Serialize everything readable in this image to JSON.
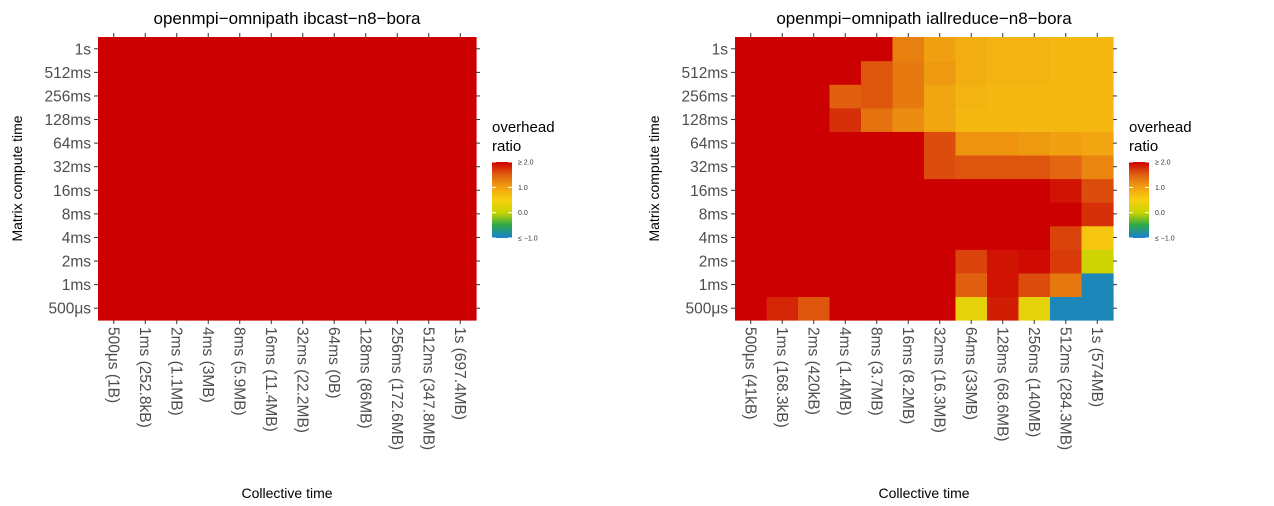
{
  "colors": {
    "scale": [
      "#1b7fd6",
      "#2ba84a",
      "#c8d400",
      "#f8d010",
      "#f0a010",
      "#e06010",
      "#cc0000"
    ],
    "scale_min": -1.0,
    "scale_max": 2.0
  },
  "chart_data": [
    {
      "type": "heatmap",
      "title": "openmpi−omnipath ibcast−n8−bora",
      "xlabel": "Collective time",
      "ylabel": "Matrix compute time",
      "x_categories": [
        "500μs (1B)",
        "1ms (252.8kB)",
        "2ms (1.1MB)",
        "4ms (3MB)",
        "8ms (5.9MB)",
        "16ms (11.4MB)",
        "32ms (22.2MB)",
        "64ms (0B)",
        "128ms (86MB)",
        "256ms (172.6MB)",
        "512ms (347.8MB)",
        "1s (697.4MB)"
      ],
      "y_categories": [
        "500μs",
        "1ms",
        "2ms",
        "4ms",
        "8ms",
        "16ms",
        "32ms",
        "64ms",
        "128ms",
        "256ms",
        "512ms",
        "1s"
      ],
      "legend": {
        "title_line1": "overhead",
        "title_line2": "ratio",
        "ticks": [
          "≥ 2.0",
          "1.0",
          "0.0",
          "≤ −1.0"
        ],
        "placement": "right"
      },
      "values": [
        [
          2.0,
          2.0,
          2.0,
          2.0,
          2.0,
          2.0,
          2.0,
          2.0,
          2.0,
          2.0,
          2.0,
          2.0
        ],
        [
          2.0,
          2.0,
          2.0,
          2.0,
          2.0,
          2.0,
          2.0,
          2.0,
          2.0,
          2.0,
          2.0,
          2.0
        ],
        [
          2.0,
          2.0,
          2.0,
          2.0,
          2.0,
          2.0,
          2.0,
          2.0,
          2.0,
          2.0,
          2.0,
          2.0
        ],
        [
          2.0,
          2.0,
          2.0,
          2.0,
          2.0,
          2.0,
          2.0,
          2.0,
          2.0,
          2.0,
          2.0,
          2.0
        ],
        [
          2.0,
          2.0,
          2.0,
          2.0,
          2.0,
          2.0,
          2.0,
          2.0,
          2.0,
          2.0,
          2.0,
          2.0
        ],
        [
          2.0,
          2.0,
          2.0,
          2.0,
          2.0,
          2.0,
          2.0,
          2.0,
          2.0,
          2.0,
          2.0,
          2.0
        ],
        [
          2.0,
          2.0,
          2.0,
          2.0,
          2.0,
          2.0,
          2.0,
          2.0,
          2.0,
          2.0,
          2.0,
          2.0
        ],
        [
          2.0,
          2.0,
          2.0,
          2.0,
          2.0,
          2.0,
          2.0,
          2.0,
          2.0,
          2.0,
          2.0,
          2.0
        ],
        [
          2.0,
          2.0,
          2.0,
          2.0,
          2.0,
          2.0,
          2.0,
          2.0,
          2.0,
          2.0,
          2.0,
          2.0
        ],
        [
          2.0,
          2.0,
          2.0,
          2.0,
          2.0,
          2.0,
          2.0,
          2.0,
          2.0,
          2.0,
          2.0,
          2.0
        ],
        [
          2.0,
          2.0,
          2.0,
          2.0,
          2.0,
          2.0,
          2.0,
          2.0,
          2.0,
          2.0,
          2.0,
          2.0
        ],
        [
          2.0,
          2.0,
          2.0,
          2.0,
          2.0,
          2.0,
          2.0,
          2.0,
          2.0,
          2.0,
          2.0,
          2.0
        ]
      ]
    },
    {
      "type": "heatmap",
      "title": "openmpi−omnipath iallreduce−n8−bora",
      "xlabel": "Collective time",
      "ylabel": "Matrix compute time",
      "x_categories": [
        "500μs (41kB)",
        "1ms (168.3kB)",
        "2ms (420kB)",
        "4ms (1.4MB)",
        "8ms (3.7MB)",
        "16ms (8.2MB)",
        "32ms (16.3MB)",
        "64ms (33MB)",
        "128ms (68.6MB)",
        "256ms (140MB)",
        "512ms (284.3MB)",
        "1s (574MB)"
      ],
      "y_categories": [
        "500μs",
        "1ms",
        "2ms",
        "4ms",
        "8ms",
        "16ms",
        "32ms",
        "64ms",
        "128ms",
        "256ms",
        "512ms",
        "1s"
      ],
      "legend": {
        "title_line1": "overhead",
        "title_line2": "ratio",
        "ticks": [
          "≥ 2.0",
          "1.0",
          "0.0",
          "≤ −1.0"
        ],
        "placement": "right"
      },
      "values": [
        [
          2.0,
          1.8,
          1.55,
          2.0,
          2.0,
          2.0,
          2.0,
          0.3,
          1.85,
          0.3,
          -0.9,
          -0.9
        ],
        [
          2.0,
          2.0,
          2.0,
          2.0,
          2.0,
          2.0,
          2.0,
          1.5,
          1.9,
          1.6,
          1.3,
          -0.9
        ],
        [
          2.0,
          2.0,
          2.0,
          2.0,
          2.0,
          2.0,
          2.0,
          1.65,
          1.9,
          1.95,
          1.7,
          0.05
        ],
        [
          2.0,
          2.0,
          2.0,
          2.0,
          2.0,
          2.0,
          2.0,
          2.0,
          2.0,
          2.0,
          1.65,
          0.6
        ],
        [
          2.0,
          2.0,
          2.0,
          2.0,
          2.0,
          2.0,
          2.0,
          2.0,
          2.0,
          2.0,
          2.0,
          1.75
        ],
        [
          2.0,
          2.0,
          2.0,
          2.0,
          2.0,
          2.0,
          2.0,
          2.0,
          2.0,
          2.0,
          1.9,
          1.6
        ],
        [
          2.0,
          2.0,
          2.0,
          2.0,
          2.0,
          2.0,
          1.6,
          1.55,
          1.55,
          1.55,
          1.45,
          1.2
        ],
        [
          2.0,
          2.0,
          2.0,
          2.0,
          2.0,
          2.0,
          1.6,
          1.1,
          1.1,
          1.05,
          1.0,
          0.95
        ],
        [
          2.0,
          2.0,
          2.0,
          1.75,
          1.35,
          1.15,
          0.95,
          0.75,
          0.75,
          0.75,
          0.75,
          0.75
        ],
        [
          2.0,
          2.0,
          2.0,
          1.5,
          1.55,
          1.3,
          0.95,
          0.8,
          0.75,
          0.75,
          0.75,
          0.75
        ],
        [
          2.0,
          2.0,
          2.0,
          2.0,
          1.55,
          1.3,
          1.05,
          0.85,
          0.8,
          0.8,
          0.75,
          0.75
        ],
        [
          2.0,
          2.0,
          2.0,
          2.0,
          2.0,
          1.25,
          1.0,
          0.85,
          0.8,
          0.8,
          0.75,
          0.75
        ]
      ]
    }
  ]
}
